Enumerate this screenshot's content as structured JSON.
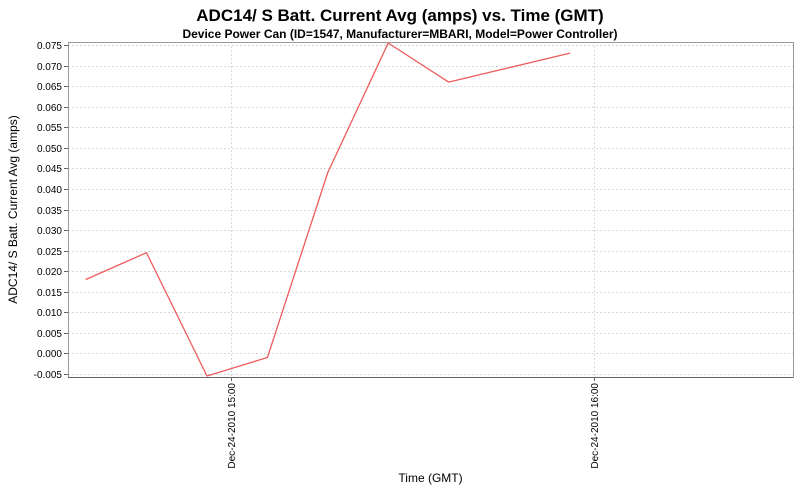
{
  "chart_data": {
    "type": "line",
    "title": "ADC14/ S Batt. Current Avg (amps) vs. Time (GMT)",
    "subtitle": "Device Power Can (ID=1547, Manufacturer=MBARI, Model=Power Controller)",
    "xlabel": "Time (GMT)",
    "ylabel": "ADC14/ S Batt. Current Avg (amps)",
    "date": "Dec-24-2010",
    "legend_position": "none",
    "grid": true,
    "xlim": [
      "14:33",
      "16:33"
    ],
    "ylim": [
      -0.00575,
      0.07575
    ],
    "x_ticks": [
      {
        "time": "15:00",
        "label": "Dec-24-2010 15:00"
      },
      {
        "time": "16:00",
        "label": "Dec-24-2010 16:00"
      }
    ],
    "y_ticks": [
      "0.075",
      "0.070",
      "0.065",
      "0.060",
      "0.055",
      "0.050",
      "0.045",
      "0.040",
      "0.035",
      "0.030",
      "0.025",
      "0.020",
      "0.015",
      "0.010",
      "0.005",
      "0.000",
      "-0.005"
    ],
    "series": [
      {
        "name": "ADC14/ S Batt. Current Avg (amps)",
        "color": "#ef5c5c",
        "points": [
          {
            "time": "14:36",
            "value": 0.018
          },
          {
            "time": "14:46",
            "value": 0.0245
          },
          {
            "time": "14:56",
            "value": -0.0055
          },
          {
            "time": "15:06",
            "value": -0.001
          },
          {
            "time": "15:16",
            "value": 0.044
          },
          {
            "time": "15:26",
            "value": 0.0755
          },
          {
            "time": "15:36",
            "value": 0.066
          },
          {
            "time": "15:56",
            "value": 0.073
          }
        ]
      }
    ],
    "colors": {
      "line": "#ef5c5c",
      "gridline": "#d9d9d9",
      "plot_border": "#9a9a9a",
      "axis_line": "#666666",
      "tick_mark": "#666666",
      "text": "#000000",
      "background": "#ffffff"
    }
  }
}
